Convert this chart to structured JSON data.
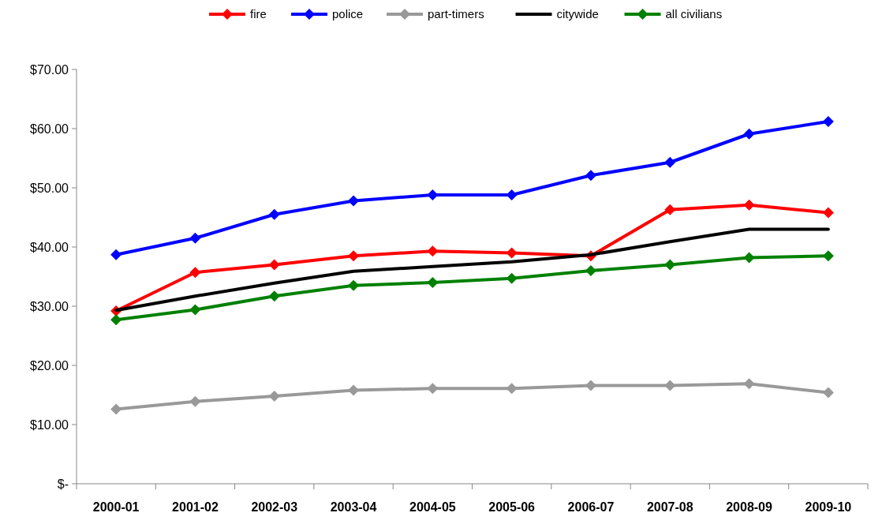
{
  "chart_data": {
    "type": "line",
    "categories": [
      "2000-01",
      "2001-02",
      "2002-03",
      "2003-04",
      "2004-05",
      "2005-06",
      "2006-07",
      "2007-08",
      "2008-09",
      "2009-10"
    ],
    "series": [
      {
        "name": "fire",
        "color": "#ff0000",
        "marker": "diamond",
        "values": [
          29.2,
          35.7,
          37.0,
          38.5,
          39.3,
          39.0,
          38.5,
          46.3,
          47.1,
          45.8
        ]
      },
      {
        "name": "police",
        "color": "#0000ff",
        "marker": "diamond",
        "values": [
          38.7,
          41.5,
          45.5,
          47.8,
          48.8,
          48.8,
          52.1,
          54.3,
          59.1,
          61.2
        ]
      },
      {
        "name": "part-timers",
        "color": "#999999",
        "marker": "diamond",
        "values": [
          12.6,
          13.9,
          14.8,
          15.8,
          16.1,
          16.1,
          16.6,
          16.6,
          16.9,
          15.4
        ]
      },
      {
        "name": "citywide",
        "color": "#000000",
        "marker": "none",
        "values": [
          29.3,
          31.7,
          33.9,
          35.9,
          36.7,
          37.5,
          38.7,
          40.9,
          43.0,
          43.0
        ]
      },
      {
        "name": "all civilians",
        "color": "#008000",
        "marker": "diamond",
        "values": [
          27.7,
          29.4,
          31.7,
          33.5,
          34.0,
          34.7,
          36.0,
          37.0,
          38.2,
          38.5
        ]
      }
    ],
    "ylim": [
      0,
      70
    ],
    "yticks": [
      {
        "value": 0,
        "label": "$-"
      },
      {
        "value": 10,
        "label": "$10.00"
      },
      {
        "value": 20,
        "label": "$20.00"
      },
      {
        "value": 30,
        "label": "$30.00"
      },
      {
        "value": 40,
        "label": "$40.00"
      },
      {
        "value": 50,
        "label": "$50.00"
      },
      {
        "value": 60,
        "label": "$60.00"
      },
      {
        "value": 70,
        "label": "$70.00"
      }
    ],
    "grid": false,
    "legend": "top",
    "line_style": "solid"
  }
}
